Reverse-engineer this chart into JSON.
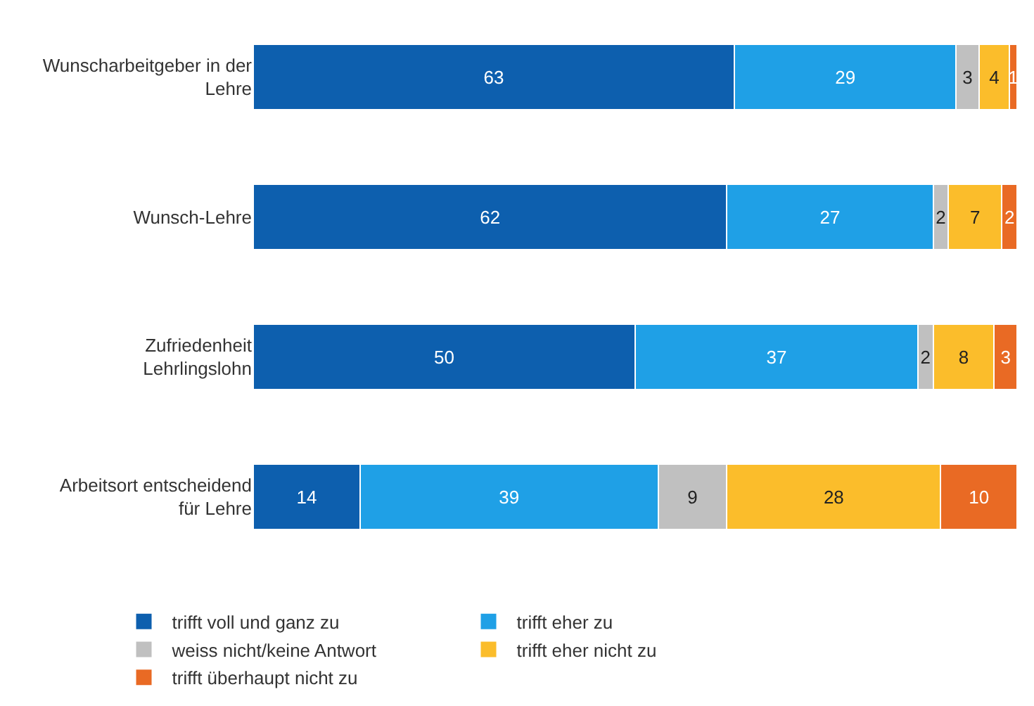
{
  "chart_data": {
    "type": "bar",
    "orientation": "horizontal",
    "stacked": true,
    "data_labels": true,
    "legend": "bottom",
    "categories": [
      "Wunscharbeitgeber in der Lehre",
      "Wunsch-Lehre",
      "Zufriedenheit Lehrlingslohn",
      "Arbeitsort entscheidend für Lehre"
    ],
    "series": [
      {
        "name": "trifft voll und ganz zu",
        "color": "#0d5fae",
        "values": [
          63,
          62,
          50,
          14
        ]
      },
      {
        "name": "trifft eher zu",
        "color": "#1fa0e6",
        "values": [
          29,
          27,
          37,
          39
        ]
      },
      {
        "name": "weiss nicht/keine Antwort",
        "color": "#c0c0c0",
        "values": [
          3,
          2,
          2,
          9
        ]
      },
      {
        "name": "trifft eher nicht zu",
        "color": "#fbbd2b",
        "values": [
          4,
          7,
          8,
          28
        ]
      },
      {
        "name": "trifft überhaupt nicht zu",
        "color": "#e96a24",
        "values": [
          1,
          2,
          3,
          10
        ]
      }
    ]
  }
}
